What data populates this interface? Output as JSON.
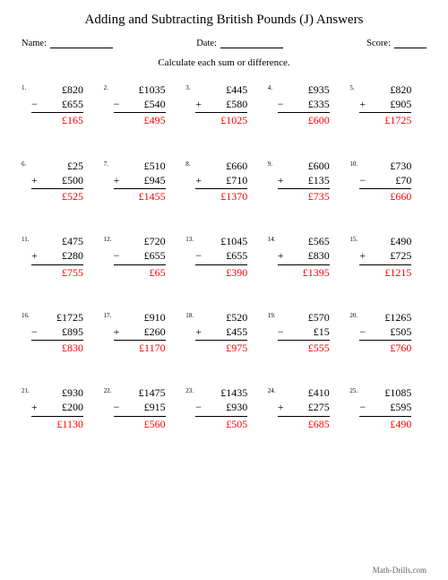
{
  "title": "Adding and Subtracting British Pounds (J) Answers",
  "labels": {
    "name": "Name:",
    "date": "Date:",
    "score": "Score:"
  },
  "instruction": "Calculate each sum or difference.",
  "footer": "Math-Drills.com",
  "line_widths": {
    "name": 70,
    "date": 70,
    "score": 36
  },
  "colors": {
    "answer": "#ff0000",
    "text": "#000000",
    "background": "#ffffff",
    "rule": "#000000"
  },
  "font": {
    "family": "Times New Roman",
    "title_size": 15,
    "meta_size": 10.5,
    "instruction_size": 11,
    "calc_size": 12,
    "num_size": 7
  },
  "problems": [
    {
      "n": "1.",
      "a": "£820",
      "op": "−",
      "b": "£655",
      "ans": "£165"
    },
    {
      "n": "2.",
      "a": "£1035",
      "op": "−",
      "b": "£540",
      "ans": "£495"
    },
    {
      "n": "3.",
      "a": "£445",
      "op": "+",
      "b": "£580",
      "ans": "£1025"
    },
    {
      "n": "4.",
      "a": "£935",
      "op": "−",
      "b": "£335",
      "ans": "£600"
    },
    {
      "n": "5.",
      "a": "£820",
      "op": "+",
      "b": "£905",
      "ans": "£1725"
    },
    {
      "n": "6.",
      "a": "£25",
      "op": "+",
      "b": "£500",
      "ans": "£525"
    },
    {
      "n": "7.",
      "a": "£510",
      "op": "+",
      "b": "£945",
      "ans": "£1455"
    },
    {
      "n": "8.",
      "a": "£660",
      "op": "+",
      "b": "£710",
      "ans": "£1370"
    },
    {
      "n": "9.",
      "a": "£600",
      "op": "+",
      "b": "£135",
      "ans": "£735"
    },
    {
      "n": "10.",
      "a": "£730",
      "op": "−",
      "b": "£70",
      "ans": "£660"
    },
    {
      "n": "11.",
      "a": "£475",
      "op": "+",
      "b": "£280",
      "ans": "£755"
    },
    {
      "n": "12.",
      "a": "£720",
      "op": "−",
      "b": "£655",
      "ans": "£65"
    },
    {
      "n": "13.",
      "a": "£1045",
      "op": "−",
      "b": "£655",
      "ans": "£390"
    },
    {
      "n": "14.",
      "a": "£565",
      "op": "+",
      "b": "£830",
      "ans": "£1395"
    },
    {
      "n": "15.",
      "a": "£490",
      "op": "+",
      "b": "£725",
      "ans": "£1215"
    },
    {
      "n": "16.",
      "a": "£1725",
      "op": "−",
      "b": "£895",
      "ans": "£830"
    },
    {
      "n": "17.",
      "a": "£910",
      "op": "+",
      "b": "£260",
      "ans": "£1170"
    },
    {
      "n": "18.",
      "a": "£520",
      "op": "+",
      "b": "£455",
      "ans": "£975"
    },
    {
      "n": "19.",
      "a": "£570",
      "op": "−",
      "b": "£15",
      "ans": "£555"
    },
    {
      "n": "20.",
      "a": "£1265",
      "op": "−",
      "b": "£505",
      "ans": "£760"
    },
    {
      "n": "21.",
      "a": "£930",
      "op": "+",
      "b": "£200",
      "ans": "£1130"
    },
    {
      "n": "22.",
      "a": "£1475",
      "op": "−",
      "b": "£915",
      "ans": "£560"
    },
    {
      "n": "23.",
      "a": "£1435",
      "op": "−",
      "b": "£930",
      "ans": "£505"
    },
    {
      "n": "24.",
      "a": "£410",
      "op": "+",
      "b": "£275",
      "ans": "£685"
    },
    {
      "n": "25.",
      "a": "£1085",
      "op": "−",
      "b": "£595",
      "ans": "£490"
    }
  ]
}
